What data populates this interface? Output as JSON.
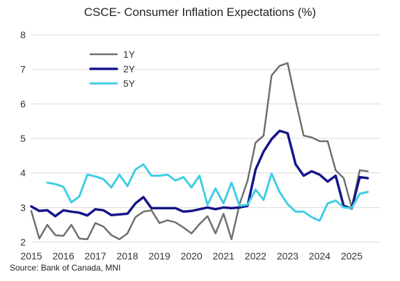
{
  "chart_data": {
    "type": "line",
    "title": "CSCE- Consumer Inflation Expectations (%)",
    "source": "Source:  Bank of Canada, MNI",
    "xlabel": "",
    "ylabel": "",
    "xlim": [
      2015.0,
      2025.9
    ],
    "ylim": [
      2,
      8
    ],
    "x_ticks": [
      "2015",
      "2016",
      "2017",
      "2018",
      "2019",
      "2020",
      "2021",
      "2022",
      "2023",
      "2024",
      "2025"
    ],
    "y_ticks": [
      "2",
      "3",
      "4",
      "5",
      "6",
      "7",
      "8"
    ],
    "grid": "horizontal",
    "legend_position": "top-left",
    "series": [
      {
        "name": "1Y",
        "color": "#6e6e6e",
        "points": [
          [
            2015.0,
            2.9
          ],
          [
            2015.25,
            2.1
          ],
          [
            2015.5,
            2.5
          ],
          [
            2015.75,
            2.2
          ],
          [
            2016.0,
            2.18
          ],
          [
            2016.25,
            2.5
          ],
          [
            2016.5,
            2.1
          ],
          [
            2016.75,
            2.08
          ],
          [
            2017.0,
            2.55
          ],
          [
            2017.25,
            2.45
          ],
          [
            2017.5,
            2.2
          ],
          [
            2017.75,
            2.08
          ],
          [
            2018.0,
            2.25
          ],
          [
            2018.25,
            2.72
          ],
          [
            2018.5,
            2.88
          ],
          [
            2018.75,
            2.92
          ],
          [
            2019.0,
            2.55
          ],
          [
            2019.25,
            2.63
          ],
          [
            2019.5,
            2.57
          ],
          [
            2019.75,
            2.42
          ],
          [
            2020.0,
            2.25
          ],
          [
            2020.25,
            2.52
          ],
          [
            2020.5,
            2.75
          ],
          [
            2020.75,
            2.25
          ],
          [
            2021.0,
            2.82
          ],
          [
            2021.25,
            2.08
          ],
          [
            2021.5,
            3.1
          ],
          [
            2021.75,
            3.78
          ],
          [
            2022.0,
            4.88
          ],
          [
            2022.25,
            5.08
          ],
          [
            2022.5,
            6.82
          ],
          [
            2022.75,
            7.1
          ],
          [
            2023.0,
            7.18
          ],
          [
            2023.25,
            6.1
          ],
          [
            2023.5,
            5.08
          ],
          [
            2023.75,
            5.03
          ],
          [
            2024.0,
            4.92
          ],
          [
            2024.25,
            4.92
          ],
          [
            2024.5,
            4.08
          ],
          [
            2024.75,
            3.85
          ],
          [
            2025.0,
            3.0
          ],
          [
            2025.25,
            4.08
          ],
          [
            2025.5,
            4.05
          ]
        ]
      },
      {
        "name": "2Y",
        "color": "#15158a",
        "points": [
          [
            2015.0,
            3.03
          ],
          [
            2015.25,
            2.9
          ],
          [
            2015.5,
            2.92
          ],
          [
            2015.75,
            2.75
          ],
          [
            2016.0,
            2.92
          ],
          [
            2016.25,
            2.88
          ],
          [
            2016.5,
            2.85
          ],
          [
            2016.75,
            2.77
          ],
          [
            2017.0,
            2.95
          ],
          [
            2017.25,
            2.92
          ],
          [
            2017.5,
            2.78
          ],
          [
            2017.75,
            2.8
          ],
          [
            2018.0,
            2.82
          ],
          [
            2018.25,
            3.12
          ],
          [
            2018.5,
            3.3
          ],
          [
            2018.75,
            2.98
          ],
          [
            2019.0,
            2.98
          ],
          [
            2019.25,
            2.98
          ],
          [
            2019.5,
            2.98
          ],
          [
            2019.75,
            2.88
          ],
          [
            2020.0,
            2.9
          ],
          [
            2020.25,
            2.95
          ],
          [
            2020.5,
            3.0
          ],
          [
            2020.75,
            2.95
          ],
          [
            2021.0,
            3.0
          ],
          [
            2021.25,
            2.98
          ],
          [
            2021.5,
            3.0
          ],
          [
            2021.75,
            3.05
          ],
          [
            2022.0,
            4.1
          ],
          [
            2022.25,
            4.62
          ],
          [
            2022.5,
            4.98
          ],
          [
            2022.75,
            5.22
          ],
          [
            2023.0,
            5.15
          ],
          [
            2023.25,
            4.25
          ],
          [
            2023.5,
            3.92
          ],
          [
            2023.75,
            4.05
          ],
          [
            2024.0,
            3.95
          ],
          [
            2024.25,
            3.75
          ],
          [
            2024.5,
            3.92
          ],
          [
            2024.75,
            3.05
          ],
          [
            2025.0,
            2.97
          ],
          [
            2025.25,
            3.88
          ],
          [
            2025.5,
            3.85
          ]
        ]
      },
      {
        "name": "5Y",
        "color": "#3fcde4",
        "points": [
          [
            2015.5,
            3.72
          ],
          [
            2015.75,
            3.68
          ],
          [
            2016.0,
            3.6
          ],
          [
            2016.25,
            3.15
          ],
          [
            2016.5,
            3.32
          ],
          [
            2016.75,
            3.95
          ],
          [
            2017.0,
            3.9
          ],
          [
            2017.25,
            3.82
          ],
          [
            2017.5,
            3.58
          ],
          [
            2017.75,
            3.95
          ],
          [
            2018.0,
            3.62
          ],
          [
            2018.25,
            4.1
          ],
          [
            2018.5,
            4.25
          ],
          [
            2018.75,
            3.92
          ],
          [
            2019.0,
            3.92
          ],
          [
            2019.25,
            3.95
          ],
          [
            2019.5,
            3.78
          ],
          [
            2019.75,
            3.88
          ],
          [
            2020.0,
            3.58
          ],
          [
            2020.25,
            3.92
          ],
          [
            2020.5,
            3.08
          ],
          [
            2020.75,
            3.55
          ],
          [
            2021.0,
            3.12
          ],
          [
            2021.25,
            3.72
          ],
          [
            2021.5,
            3.05
          ],
          [
            2021.75,
            3.08
          ],
          [
            2022.0,
            3.52
          ],
          [
            2022.25,
            3.22
          ],
          [
            2022.5,
            3.98
          ],
          [
            2022.75,
            3.45
          ],
          [
            2023.0,
            3.1
          ],
          [
            2023.25,
            2.88
          ],
          [
            2023.5,
            2.88
          ],
          [
            2023.75,
            2.72
          ],
          [
            2024.0,
            2.62
          ],
          [
            2024.25,
            3.12
          ],
          [
            2024.5,
            3.2
          ],
          [
            2024.75,
            3.0
          ],
          [
            2025.0,
            2.98
          ],
          [
            2025.25,
            3.4
          ],
          [
            2025.5,
            3.45
          ]
        ]
      }
    ]
  }
}
